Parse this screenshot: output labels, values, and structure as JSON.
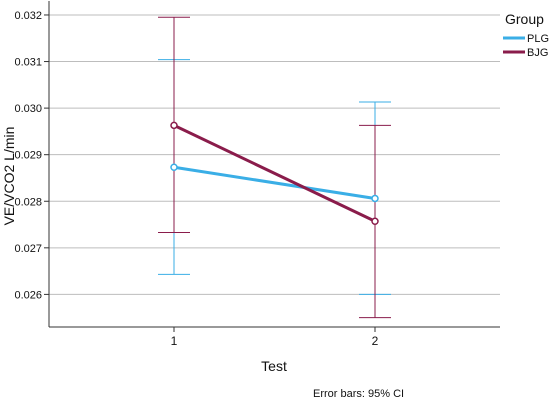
{
  "chart_data": {
    "type": "line",
    "title": "",
    "xlabel": "Test",
    "ylabel": "VE/VCO2 L/min",
    "categories": [
      "1",
      "2"
    ],
    "ylim": [
      0.0253,
      0.0323
    ],
    "yticks": [
      "0.026",
      "0.027",
      "0.028",
      "0.029",
      "0.030",
      "0.031",
      "0.032"
    ],
    "grid": "horizontal",
    "legend": {
      "title": "Group",
      "placement": "top-right outside"
    },
    "footnote": "Error bars: 95% CI",
    "series": [
      {
        "name": "PLG",
        "color": "#3aaee6",
        "values": [
          0.02873,
          0.02806
        ],
        "ci_lower": [
          0.02643,
          0.026
        ],
        "ci_upper": [
          0.03104,
          0.03013
        ]
      },
      {
        "name": "BJG",
        "color": "#8a1c4b",
        "values": [
          0.02963,
          0.02757
        ],
        "ci_lower": [
          0.02733,
          0.0255
        ],
        "ci_upper": [
          0.03195,
          0.02963
        ]
      }
    ]
  }
}
